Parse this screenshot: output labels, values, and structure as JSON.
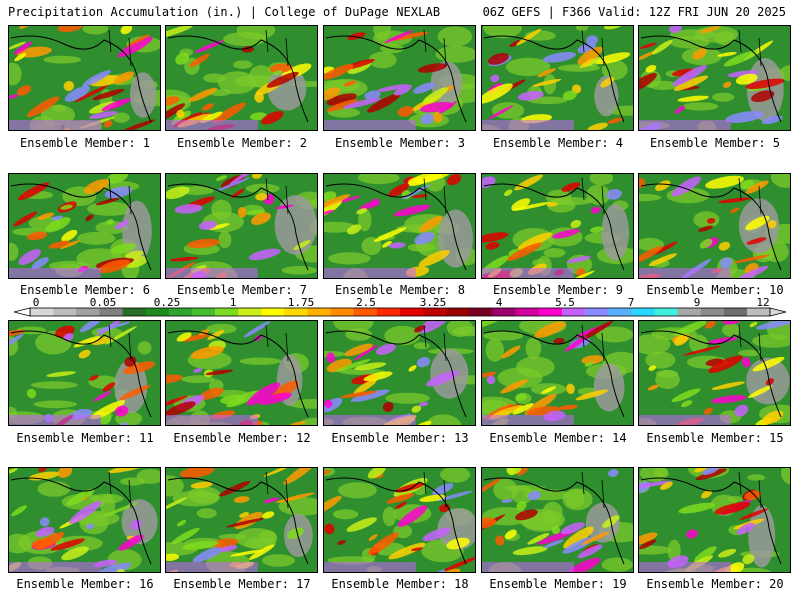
{
  "header": {
    "title": "Precipitation Accumulation (in.) | College of DuPage NEXLAB",
    "run_info": "06Z GEFS | F366 Valid: 12Z FRI JUN 20 2025"
  },
  "colorbar": {
    "ticks": [
      "0",
      "0.05",
      "0.25",
      "1",
      "1.75",
      "2.5",
      "3.25",
      "4",
      "5.5",
      "7",
      "9",
      "12"
    ],
    "colors": [
      "#d8d8d8",
      "#bdbdbd",
      "#a0a0a0",
      "#808080",
      "#2a6e2a",
      "#1f8a1f",
      "#2fa52f",
      "#45bf2d",
      "#7fdb1d",
      "#c8f018",
      "#fffb00",
      "#ffd800",
      "#ffb000",
      "#ff8a00",
      "#ff5a00",
      "#ff2800",
      "#e60000",
      "#c00000",
      "#9a0000",
      "#7a0026",
      "#a0006e",
      "#d0009a",
      "#ff00d0",
      "#c860ff",
      "#8a8aff",
      "#5ab0ff",
      "#2ad8ff",
      "#40f0e0",
      "#a8a8a8",
      "#8c8c8c",
      "#6e6e6e",
      "#bcbcbc"
    ]
  },
  "colors": {
    "land": "#2f8f2f",
    "land_light": "#7fcc2a",
    "ocean_dry": "#9a9a9a",
    "coast": "#000000"
  },
  "members": [
    {
      "label": "Ensemble Member: 1"
    },
    {
      "label": "Ensemble Member: 2"
    },
    {
      "label": "Ensemble Member: 3"
    },
    {
      "label": "Ensemble Member: 4"
    },
    {
      "label": "Ensemble Member: 5"
    },
    {
      "label": "Ensemble Member: 6"
    },
    {
      "label": "Ensemble Member: 7"
    },
    {
      "label": "Ensemble Member: 8"
    },
    {
      "label": "Ensemble Member: 9"
    },
    {
      "label": "Ensemble Member: 10"
    },
    {
      "label": "Ensemble Member: 11"
    },
    {
      "label": "Ensemble Member: 12"
    },
    {
      "label": "Ensemble Member: 13"
    },
    {
      "label": "Ensemble Member: 14"
    },
    {
      "label": "Ensemble Member: 15"
    },
    {
      "label": "Ensemble Member: 16"
    },
    {
      "label": "Ensemble Member: 17"
    },
    {
      "label": "Ensemble Member: 18"
    },
    {
      "label": "Ensemble Member: 19"
    },
    {
      "label": "Ensemble Member: 20"
    }
  ]
}
